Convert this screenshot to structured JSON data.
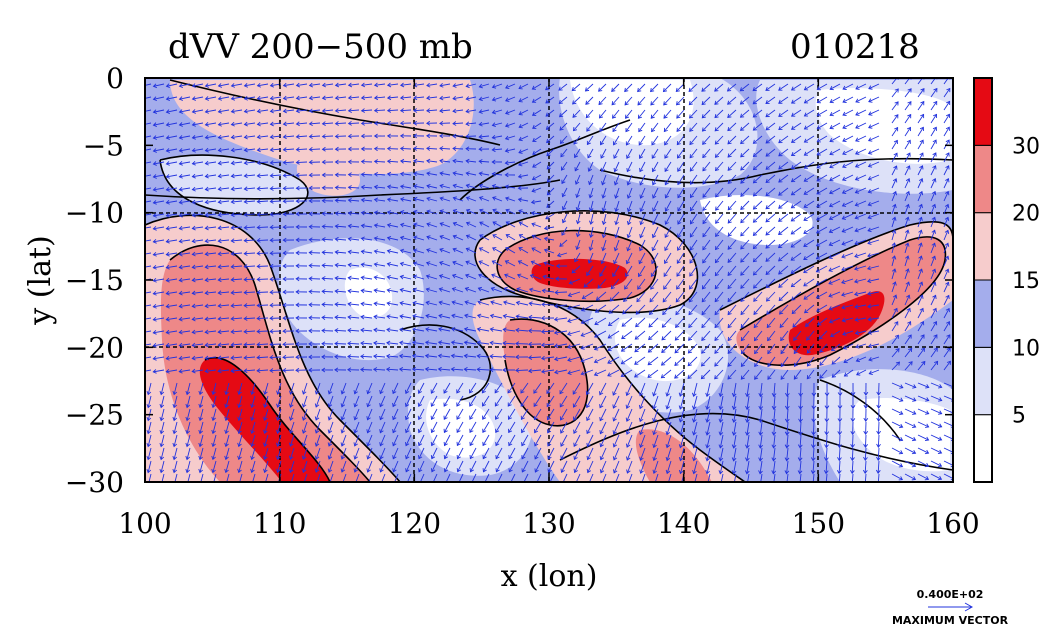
{
  "chart_data": {
    "type": "heatmap",
    "title": "dVV 200−500 mb",
    "date_label": "010218",
    "xlabel": "x (lon)",
    "ylabel": "y (lat)",
    "x_ticks": [
      "100",
      "110",
      "120",
      "130",
      "140",
      "150",
      "160"
    ],
    "x_tick_values": [
      100,
      110,
      120,
      130,
      140,
      150,
      160
    ],
    "y_ticks": [
      "0",
      "−5",
      "−10",
      "−15",
      "−20",
      "−25",
      "−30"
    ],
    "y_tick_values": [
      0,
      -5,
      -10,
      -15,
      -20,
      -25,
      -30
    ],
    "xlim": [
      100,
      160
    ],
    "ylim": [
      -30,
      0
    ],
    "grid": true,
    "colorbar": {
      "labels": [
        "30",
        "20",
        "15",
        "10",
        "5"
      ],
      "levels": [
        0,
        5,
        10,
        15,
        20,
        30
      ],
      "colors": [
        "#ffffff",
        "#dde1f8",
        "#a4adec",
        "#f6cccc",
        "#ee8888",
        "#e50a14"
      ]
    },
    "vector_legend": {
      "value": "0.400E+02",
      "label": "MAXIMUM VECTOR",
      "color": "#2233dd"
    },
    "regions": [
      {
        "name": "high-15S-133E",
        "lon": 133,
        "lat": -14,
        "level": 30
      },
      {
        "name": "high-20S-152E",
        "lon": 152,
        "lat": -19,
        "level": 30
      },
      {
        "name": "high-26S-108E",
        "lon": 108,
        "lat": -26,
        "level": 30
      },
      {
        "name": "mid-20S-104E",
        "lon": 104,
        "lat": -19,
        "level": 20
      },
      {
        "name": "mid-21S-132E",
        "lon": 132,
        "lat": -21,
        "level": 20
      },
      {
        "name": "mid-28S-140E",
        "lon": 140,
        "lat": -28,
        "level": 20
      }
    ]
  }
}
